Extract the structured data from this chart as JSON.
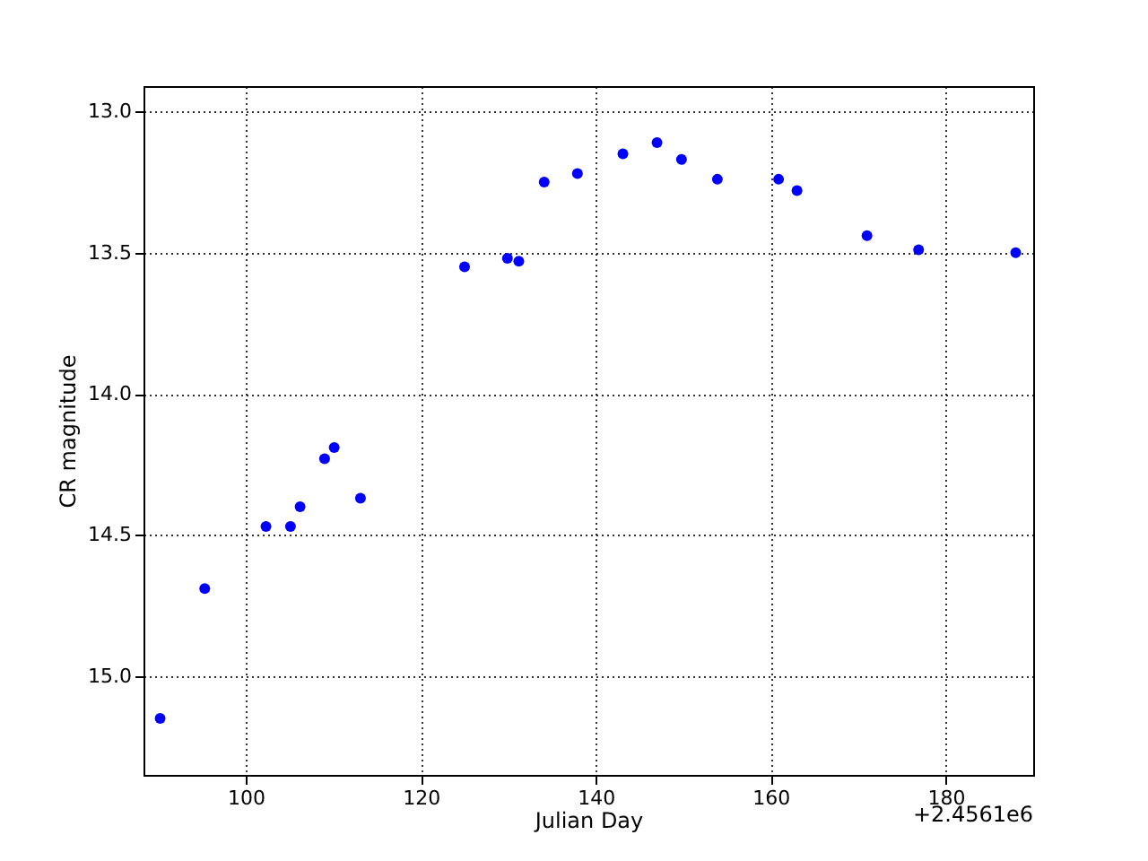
{
  "chart_data": {
    "type": "scatter",
    "xlabel": "Julian Day",
    "ylabel": "CR magnitude",
    "annotations": [
      "+2.4561e6"
    ],
    "x": [
      90.2,
      95.3,
      102.3,
      105.1,
      106.2,
      109.0,
      110.1,
      113.1,
      125.0,
      129.9,
      131.2,
      134.1,
      137.9,
      143.1,
      147.0,
      149.8,
      153.9,
      160.9,
      163.0,
      171.0,
      176.9,
      188.0
    ],
    "series": [
      {
        "color": "#0000ff",
        "values": [
          15.15,
          14.69,
          14.47,
          14.47,
          14.4,
          14.23,
          14.19,
          14.37,
          13.55,
          13.52,
          13.53,
          13.25,
          13.22,
          13.15,
          13.11,
          13.17,
          13.24,
          13.24,
          13.28,
          13.44,
          13.49,
          13.5
        ]
      }
    ],
    "xlim": [
      88.3,
      190.0
    ],
    "xticks": [
      100,
      120,
      140,
      160,
      180
    ],
    "ylim": [
      15.35,
      12.91
    ],
    "yticks": [
      {
        "value": 13.0,
        "label": "13.0"
      },
      {
        "value": 13.5,
        "label": "13.5"
      },
      {
        "value": 14.0,
        "label": "14.0"
      },
      {
        "value": 14.5,
        "label": "14.5"
      },
      {
        "value": 15.0,
        "label": "15.0"
      }
    ],
    "grid": true,
    "marker": "circle"
  }
}
